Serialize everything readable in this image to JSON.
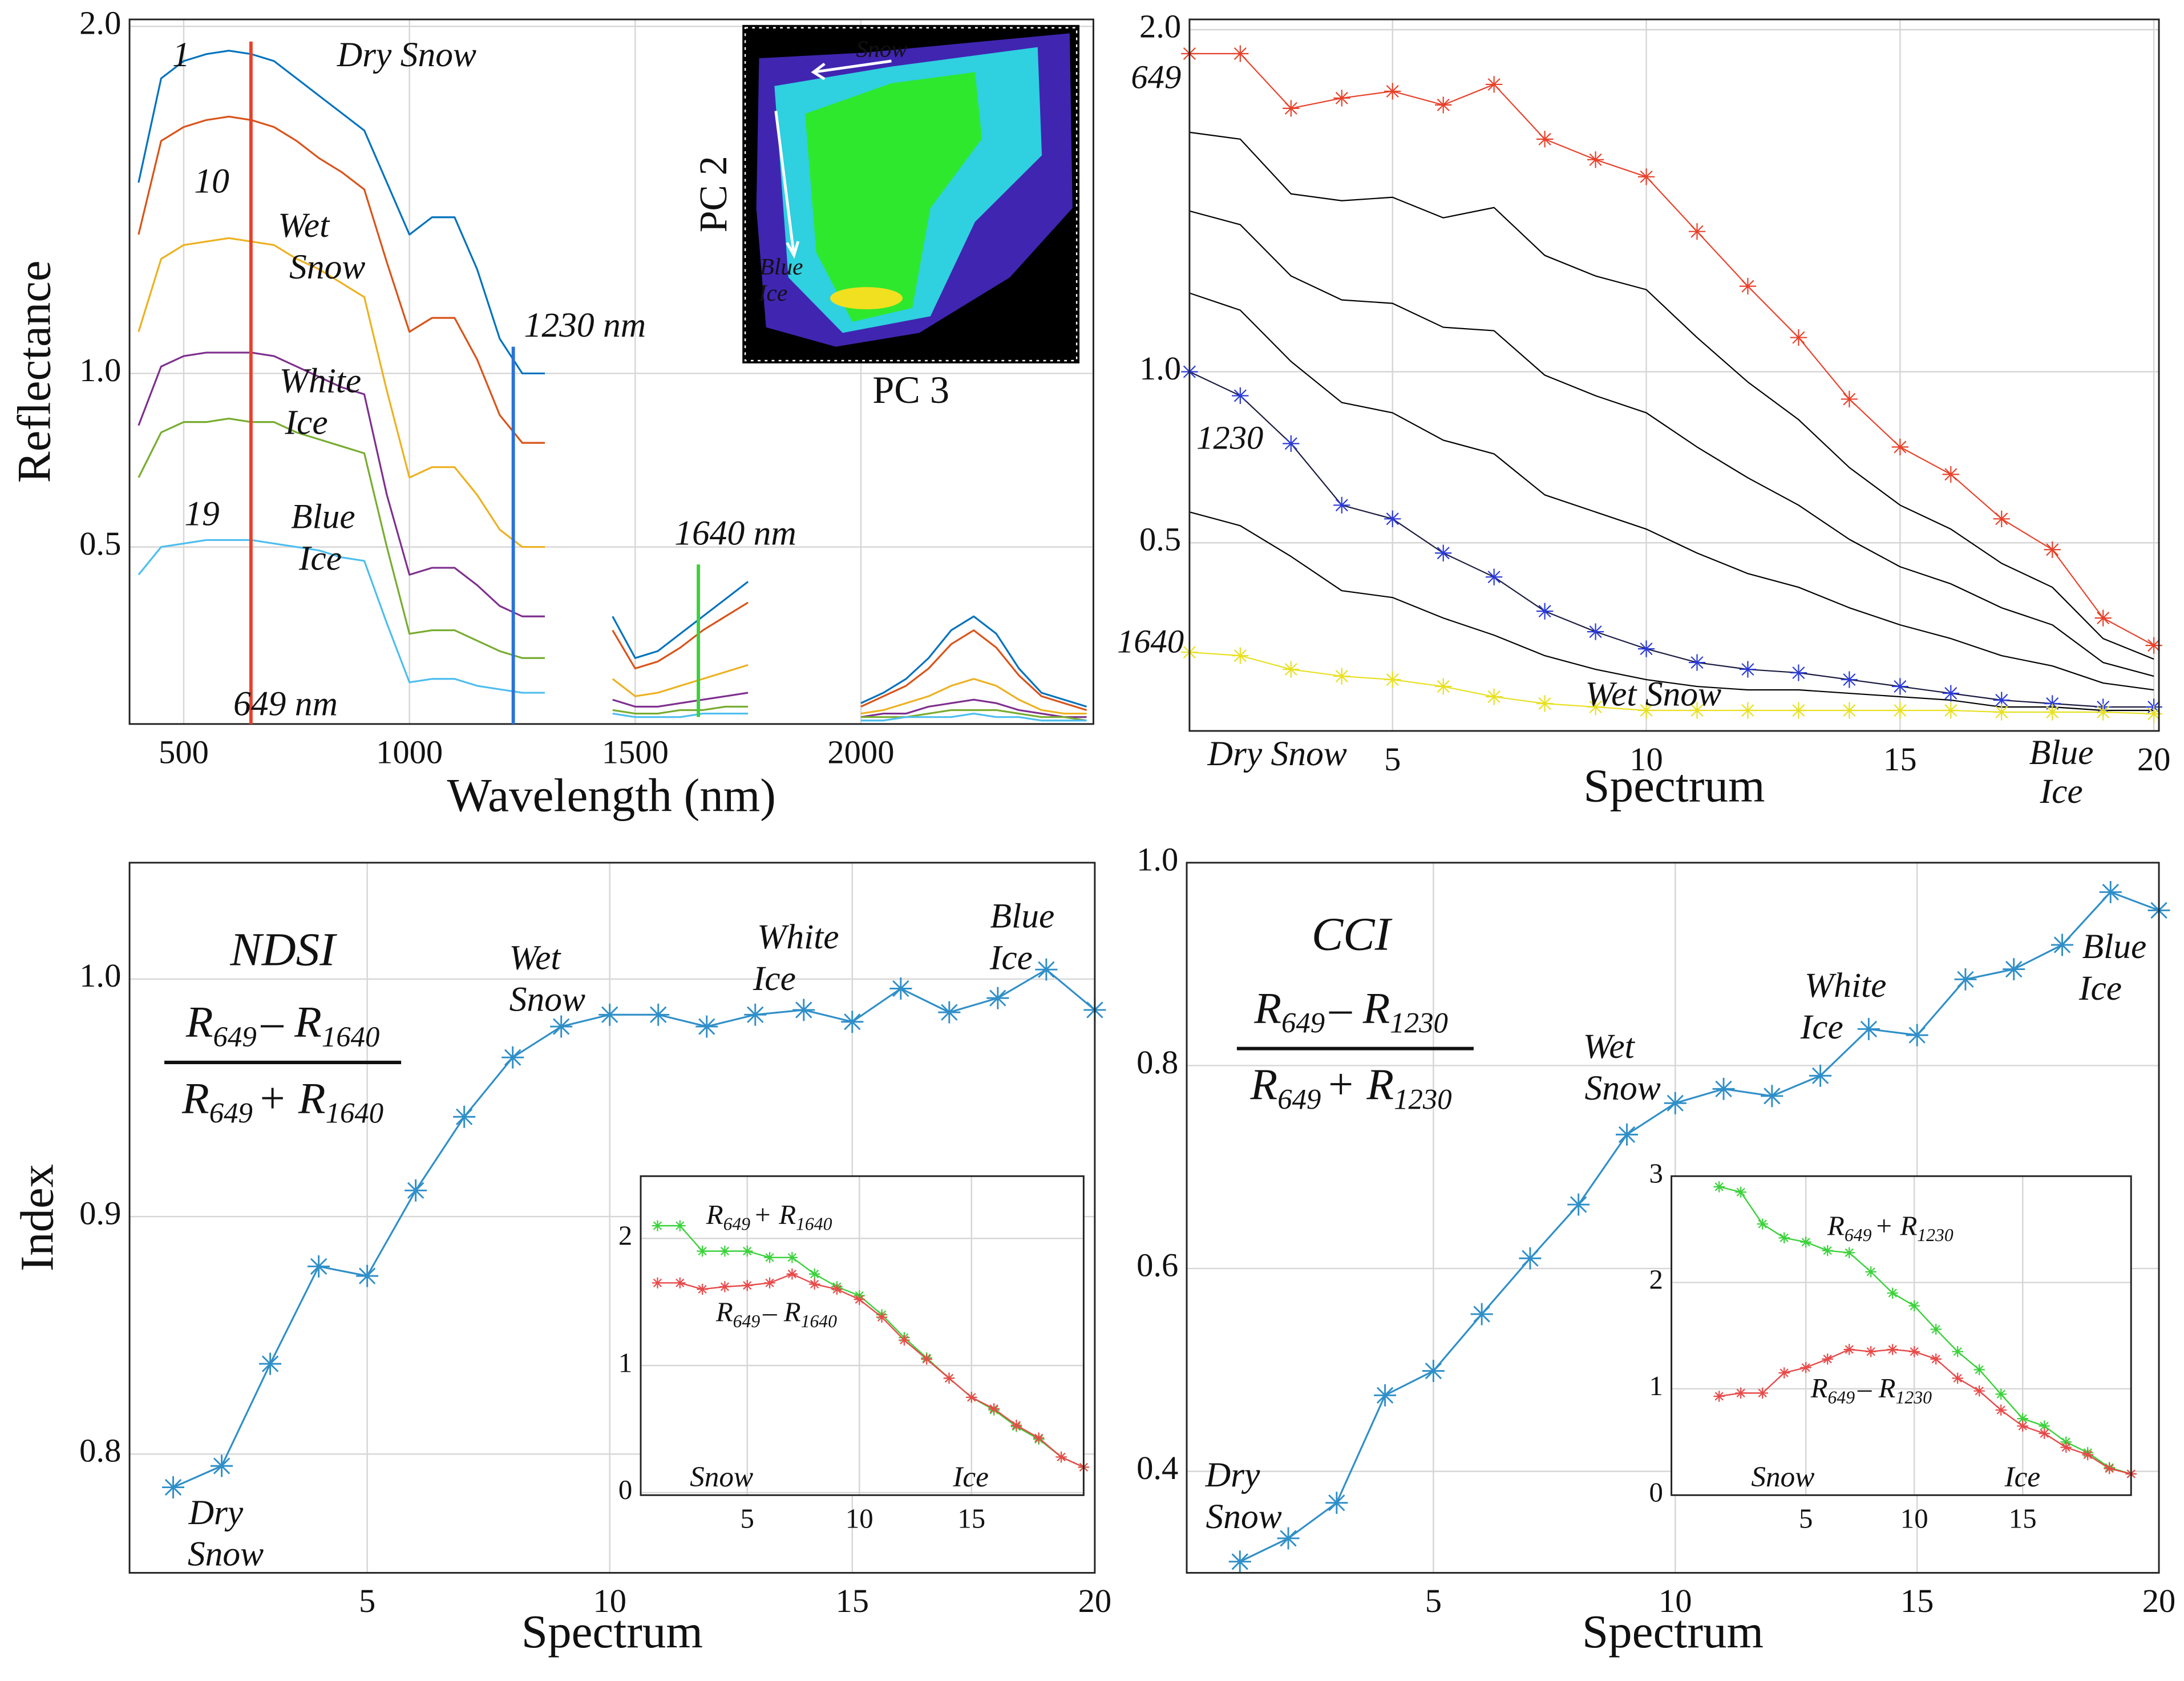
{
  "chart_data": [
    {
      "type": "line",
      "ylabel": "Reflectance",
      "xlabel": "Wavelength (nm)",
      "xlim": [
        380,
        2515
      ],
      "ylim": [
        -0.01,
        2.02
      ],
      "xticks": [
        500,
        1000,
        1500,
        2000
      ],
      "yticks": [
        0.5,
        {
          "value": 1,
          "label": "1.0"
        },
        {
          "value": 2,
          "label": "2.0"
        }
      ],
      "grid": true,
      "x": [
        400,
        450,
        500,
        550,
        600,
        650,
        700,
        750,
        800,
        850,
        900,
        950,
        1000,
        1050,
        1100,
        1150,
        1200,
        1250,
        1300,
        1350,
        1450,
        1500,
        1550,
        1600,
        1650,
        1700,
        1750,
        1850,
        2000,
        2050,
        2100,
        2150,
        2200,
        2250,
        2300,
        2350,
        2400,
        2450,
        2500
      ],
      "series": [
        {
          "color": "#0072bd",
          "values": [
            1.55,
            1.85,
            1.9,
            1.92,
            1.93,
            1.92,
            1.9,
            1.85,
            1.8,
            1.75,
            1.7,
            1.55,
            1.4,
            1.45,
            1.45,
            1.3,
            1.1,
            1.0,
            1.0,
            null,
            0.3,
            0.18,
            0.2,
            0.25,
            0.3,
            0.35,
            0.4,
            null,
            0.05,
            0.08,
            0.12,
            0.18,
            0.26,
            0.3,
            0.25,
            0.15,
            0.08,
            0.06,
            0.04
          ]
        },
        {
          "color": "#d95319",
          "values": [
            1.4,
            1.67,
            1.71,
            1.73,
            1.74,
            1.73,
            1.71,
            1.67,
            1.62,
            1.58,
            1.53,
            1.32,
            1.12,
            1.16,
            1.16,
            1.04,
            0.88,
            0.8,
            0.8,
            null,
            0.26,
            0.15,
            0.17,
            0.21,
            0.26,
            0.3,
            0.34,
            null,
            0.04,
            0.07,
            0.1,
            0.15,
            0.22,
            0.26,
            0.21,
            0.13,
            0.07,
            0.05,
            0.03
          ]
        },
        {
          "color": "#edb120",
          "values": [
            1.12,
            1.33,
            1.37,
            1.38,
            1.39,
            1.38,
            1.37,
            1.33,
            1.3,
            1.26,
            1.22,
            0.95,
            0.7,
            0.73,
            0.73,
            0.65,
            0.55,
            0.5,
            0.5,
            null,
            0.12,
            0.07,
            0.08,
            0.1,
            0.12,
            0.14,
            0.16,
            null,
            0.02,
            0.03,
            0.05,
            0.07,
            0.1,
            0.12,
            0.1,
            0.06,
            0.03,
            0.02,
            0.02
          ]
        },
        {
          "color": "#7e2f8e",
          "values": [
            0.85,
            1.02,
            1.05,
            1.06,
            1.06,
            1.06,
            1.05,
            1.02,
            0.99,
            0.96,
            0.94,
            0.65,
            0.42,
            0.44,
            0.44,
            0.39,
            0.33,
            0.3,
            0.3,
            null,
            0.06,
            0.04,
            0.04,
            0.05,
            0.06,
            0.07,
            0.08,
            null,
            0.01,
            0.02,
            0.02,
            0.04,
            0.05,
            0.06,
            0.05,
            0.03,
            0.02,
            0.01,
            0.01
          ]
        },
        {
          "color": "#77ac30",
          "values": [
            0.7,
            0.83,
            0.86,
            0.86,
            0.87,
            0.86,
            0.86,
            0.83,
            0.81,
            0.79,
            0.77,
            0.5,
            0.25,
            0.26,
            0.26,
            0.23,
            0.2,
            0.18,
            0.18,
            null,
            0.03,
            0.02,
            0.02,
            0.03,
            0.03,
            0.04,
            0.04,
            null,
            0.01,
            0.01,
            0.01,
            0.02,
            0.03,
            0.03,
            0.03,
            0.02,
            0.01,
            0.01,
            0
          ]
        },
        {
          "color": "#4dbeee",
          "values": [
            0.42,
            0.5,
            0.51,
            0.52,
            0.52,
            0.52,
            0.51,
            0.5,
            0.49,
            0.47,
            0.46,
            0.28,
            0.11,
            0.12,
            0.12,
            0.1,
            0.09,
            0.08,
            0.08,
            null,
            0.02,
            0.01,
            0.01,
            0.01,
            0.02,
            0.02,
            0.02,
            null,
            0,
            0,
            0.01,
            0.01,
            0.01,
            0.02,
            0.01,
            0.01,
            0,
            0,
            0
          ]
        }
      ],
      "markers": [
        {
          "x": 649,
          "label": "649 nm",
          "color": "#e8412a"
        },
        {
          "x": 1230,
          "label": "1230 nm",
          "color": "#2a72d9"
        },
        {
          "x": 1640,
          "label": "1640 nm",
          "color": "#3ad23a"
        }
      ],
      "annotations": [
        "1",
        "Dry Snow",
        "10",
        "Wet",
        "Snow",
        "White",
        "Ice",
        "19",
        "Blue",
        "Ice"
      ],
      "inset": {
        "type": "density",
        "xlabel": "PC 3",
        "ylabel": "PC 2",
        "annotations": [
          "Snow",
          "Blue",
          "Ice"
        ]
      }
    },
    {
      "type": "line",
      "xlabel": "Spectrum",
      "xlim": [
        1,
        20.1
      ],
      "ylim": [
        -0.05,
        2.03
      ],
      "xticks": [
        5,
        10,
        15,
        20
      ],
      "yticks": [
        0.5,
        {
          "value": 1,
          "label": "1.0"
        },
        {
          "value": 2,
          "label": "2.0"
        }
      ],
      "grid": true,
      "x": [
        1,
        2,
        3,
        4,
        5,
        6,
        7,
        8,
        9,
        10,
        11,
        12,
        13,
        14,
        15,
        16,
        17,
        18,
        19,
        20
      ],
      "series": [
        {
          "color": "#000000",
          "values": [
            1.7,
            1.68,
            1.52,
            1.5,
            1.51,
            1.45,
            1.48,
            1.34,
            1.28,
            1.24,
            1.1,
            0.97,
            0.86,
            0.72,
            0.61,
            0.54,
            0.44,
            0.37,
            0.22,
            0.16
          ]
        },
        {
          "color": "#000000",
          "values": [
            1.47,
            1.43,
            1.28,
            1.21,
            1.2,
            1.13,
            1.12,
            0.99,
            0.93,
            0.88,
            0.78,
            0.69,
            0.61,
            0.51,
            0.43,
            0.38,
            0.31,
            0.26,
            0.15,
            0.11
          ]
        },
        {
          "color": "#000000",
          "values": [
            1.23,
            1.18,
            1.03,
            0.91,
            0.88,
            0.8,
            0.76,
            0.64,
            0.59,
            0.54,
            0.47,
            0.41,
            0.37,
            0.31,
            0.26,
            0.22,
            0.17,
            0.14,
            0.09,
            0.07
          ]
        },
        {
          "color": "#000000",
          "values": [
            0.59,
            0.55,
            0.46,
            0.36,
            0.34,
            0.28,
            0.23,
            0.17,
            0.13,
            0.1,
            0.08,
            0.07,
            0.07,
            0.06,
            0.05,
            0.04,
            0.02,
            0.02,
            0.01,
            0.01
          ]
        },
        {
          "color": "#e8412a",
          "marker": "*",
          "label": "649",
          "values": [
            1.93,
            1.93,
            1.77,
            1.8,
            1.82,
            1.78,
            1.84,
            1.68,
            1.62,
            1.57,
            1.41,
            1.25,
            1.1,
            0.92,
            0.78,
            0.7,
            0.57,
            0.48,
            0.28,
            0.2
          ]
        },
        {
          "color": "#2a3ad9",
          "line_color": "#1a1a40",
          "marker": "*",
          "label": "1230",
          "values": [
            1.0,
            0.93,
            0.79,
            0.61,
            0.57,
            0.47,
            0.4,
            0.3,
            0.24,
            0.19,
            0.15,
            0.13,
            0.12,
            0.1,
            0.08,
            0.06,
            0.04,
            0.03,
            0.02,
            0.02
          ]
        },
        {
          "color": "#e8e020",
          "label_color": "#3ad23a",
          "marker": "*",
          "label": "1640",
          "values": [
            0.18,
            0.17,
            0.13,
            0.11,
            0.1,
            0.08,
            0.05,
            0.03,
            0.02,
            0.01,
            0.01,
            0.01,
            0.01,
            0.01,
            0.01,
            0.01,
            0.005,
            0.005,
            0.005,
            0
          ]
        }
      ],
      "annotations": [
        "Dry Snow",
        "Wet Snow",
        "Blue",
        "Ice"
      ]
    },
    {
      "type": "line",
      "ylabel": "Index",
      "xlabel": "Spectrum",
      "xlim": [
        0.1,
        20
      ],
      "ylim": [
        0.75,
        1.049
      ],
      "xticks": [
        5,
        10,
        15,
        20
      ],
      "yticks": [
        0.8,
        0.9,
        {
          "value": 1,
          "label": "1.0"
        }
      ],
      "grid": true,
      "x": [
        1,
        2,
        3,
        4,
        5,
        6,
        7,
        8,
        9,
        10,
        11,
        12,
        13,
        14,
        15,
        16,
        17,
        18,
        19,
        20
      ],
      "series": [
        {
          "color": "#2f8fc8",
          "marker": "*",
          "values": [
            0.786,
            0.795,
            0.838,
            0.879,
            0.875,
            0.911,
            0.942,
            0.967,
            0.98,
            0.985,
            0.985,
            0.98,
            0.985,
            0.987,
            0.982,
            0.996,
            0.986,
            0.992,
            1.004,
            0.987
          ]
        }
      ],
      "formula": {
        "name": "NDSI",
        "numerator": [
          "R",
          "649",
          "– R",
          "1640"
        ],
        "denominator": [
          "R",
          "649",
          "+ R",
          "1640"
        ]
      },
      "annotations": [
        "Dry",
        "Snow",
        "Wet",
        "Snow",
        "White",
        "Ice",
        "Blue",
        "Ice"
      ],
      "inset": {
        "type": "line",
        "xlim": [
          0.25,
          20
        ],
        "ylim": [
          -0.02,
          2.49
        ],
        "xticks": [
          5,
          10,
          15
        ],
        "yticks": [
          0,
          1,
          2
        ],
        "grid": true,
        "x": [
          1,
          2,
          3,
          4,
          5,
          6,
          7,
          8,
          9,
          10,
          11,
          12,
          13,
          14,
          15,
          16,
          17,
          18,
          19,
          20
        ],
        "series": [
          {
            "color": "#3ad23a",
            "marker": "*",
            "label": [
              "R",
              "649",
              "+ R",
              "1640"
            ],
            "values": [
              2.1,
              2.1,
              1.9,
              1.9,
              1.9,
              1.85,
              1.85,
              1.72,
              1.62,
              1.55,
              1.4,
              1.22,
              1.06,
              0.9,
              0.75,
              0.65,
              0.52,
              0.42,
              0.28,
              0.2
            ]
          },
          {
            "color": "#e84a4a",
            "marker": "*",
            "label": [
              "R",
              "649",
              "– R",
              "1640"
            ],
            "values": [
              1.65,
              1.65,
              1.6,
              1.62,
              1.63,
              1.65,
              1.72,
              1.64,
              1.6,
              1.52,
              1.38,
              1.2,
              1.05,
              0.9,
              0.75,
              0.66,
              0.53,
              0.43,
              0.28,
              0.2
            ]
          }
        ],
        "annotations": [
          "Snow",
          "Ice"
        ]
      }
    },
    {
      "type": "line",
      "xlabel": "Spectrum",
      "xlim": [
        -0.1,
        20
      ],
      "ylim": [
        0.3,
        1.0
      ],
      "xticks": [
        5,
        10,
        15,
        20
      ],
      "yticks": [
        0.4,
        0.6,
        0.8,
        {
          "value": 1,
          "label": "1.0"
        }
      ],
      "grid": true,
      "x": [
        1,
        2,
        3,
        4,
        5,
        6,
        7,
        8,
        9,
        10,
        11,
        12,
        13,
        14,
        15,
        16,
        17,
        18,
        19,
        20
      ],
      "series": [
        {
          "color": "#2f8fc8",
          "marker": "*",
          "values": [
            0.311,
            0.334,
            0.369,
            0.475,
            0.499,
            0.555,
            0.61,
            0.663,
            0.732,
            0.763,
            0.777,
            0.77,
            0.79,
            0.836,
            0.83,
            0.885,
            0.895,
            0.919,
            0.971,
            0.953
          ]
        }
      ],
      "formula": {
        "name": "CCI",
        "numerator": [
          "R",
          "649",
          "– R",
          "1230"
        ],
        "denominator": [
          "R",
          "649",
          "+ R",
          "1230"
        ]
      },
      "annotations": [
        "Dry",
        "Snow",
        "Wet",
        "Snow",
        "White",
        "Ice",
        "Blue",
        "Ice"
      ],
      "inset": {
        "type": "line",
        "xlim": [
          -1.2,
          20
        ],
        "ylim": [
          0,
          3
        ],
        "xticks": [
          5,
          10,
          15
        ],
        "yticks": [
          0,
          1,
          2,
          3
        ],
        "grid": true,
        "x": [
          1,
          2,
          3,
          4,
          5,
          6,
          7,
          8,
          9,
          10,
          11,
          12,
          13,
          14,
          15,
          16,
          17,
          18,
          19,
          20
        ],
        "series": [
          {
            "color": "#3ad23a",
            "marker": "*",
            "label": [
              "R",
              "649",
              "+ R",
              "1230"
            ],
            "values": [
              2.9,
              2.85,
              2.55,
              2.42,
              2.38,
              2.3,
              2.28,
              2.1,
              1.9,
              1.78,
              1.56,
              1.35,
              1.18,
              0.95,
              0.72,
              0.65,
              0.5,
              0.4,
              0.26,
              0.2
            ]
          },
          {
            "color": "#e84a4a",
            "marker": "*",
            "label": [
              "R",
              "649",
              "– R",
              "1230"
            ],
            "values": [
              0.93,
              0.96,
              0.96,
              1.15,
              1.2,
              1.28,
              1.37,
              1.35,
              1.37,
              1.35,
              1.28,
              1.1,
              0.98,
              0.8,
              0.65,
              0.58,
              0.45,
              0.38,
              0.25,
              0.2
            ]
          }
        ],
        "annotations": [
          "Snow",
          "Ice"
        ]
      }
    }
  ]
}
